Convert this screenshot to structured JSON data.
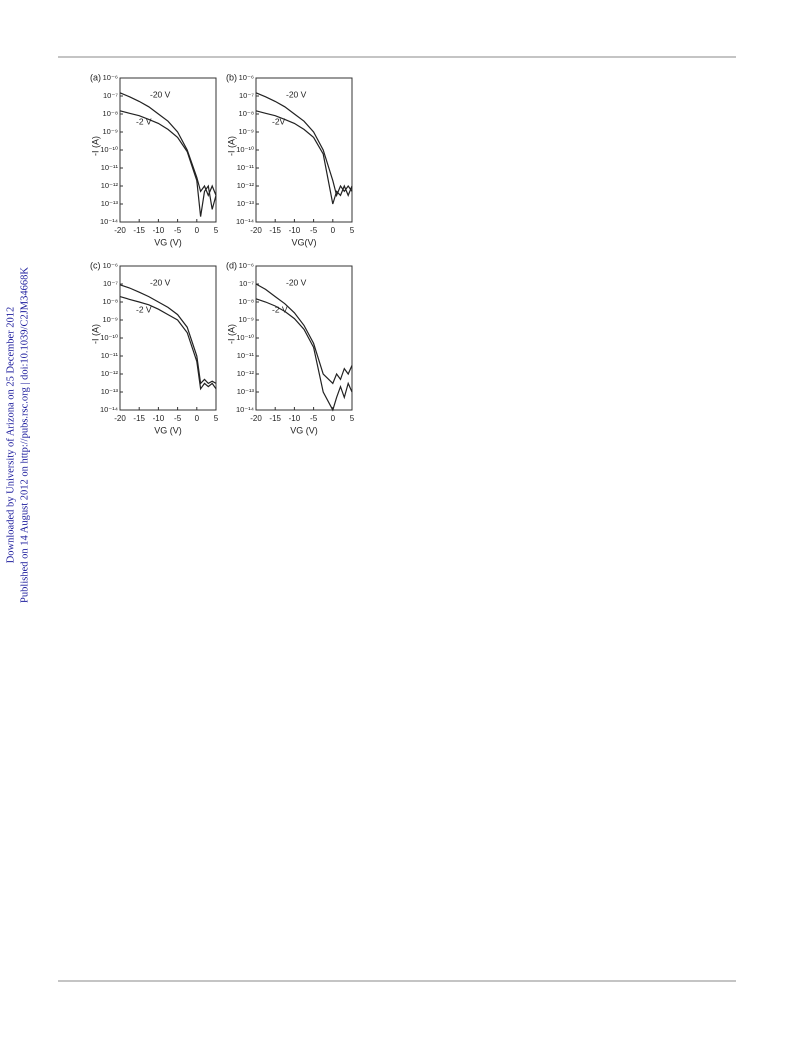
{
  "sidebar": {
    "line1": "Downloaded by University of Arizona on 25 December 2012",
    "line2": "Published on 14 August 2012 on http://pubs.rsc.org | doi:10.1039/C2JM34668K"
  },
  "chart_data": [
    {
      "type": "line",
      "panel": "(a)",
      "x_label": "VG (V)",
      "y_label": "-I (A)",
      "log_y": true,
      "x": [
        -20,
        -17.5,
        -15,
        -12.5,
        -10,
        -7.5,
        -5,
        -2.5,
        0,
        1,
        2,
        3,
        4,
        5
      ],
      "series": [
        {
          "color": "#222222",
          "values": [
            1.5e-07,
            9e-08,
            5e-08,
            2.5e-08,
            1e-08,
            4e-09,
            1e-09,
            1e-10,
            3e-12,
            5e-13,
            1e-12,
            3e-13,
            1e-12,
            3e-13
          ]
        },
        {
          "color": "#222222",
          "values": [
            1.5e-08,
            1.1e-08,
            8e-09,
            5e-09,
            3e-09,
            1.4e-09,
            5e-10,
            8e-11,
            2e-12,
            2e-14,
            5e-13,
            1e-12,
            5e-14,
            3e-13
          ]
        }
      ],
      "annotations": [
        "-20 V",
        "-2 V"
      ],
      "xlim": [
        -20,
        5
      ],
      "ylim": [
        1e-14,
        1e-06
      ],
      "xticks": [
        -20,
        -15,
        -10,
        -5,
        0,
        5
      ],
      "yticks": [
        {
          "value": 1e-14,
          "label": "10⁻¹⁴"
        },
        {
          "value": 1e-13,
          "label": "10⁻¹³"
        },
        {
          "value": 1e-12,
          "label": "10⁻¹²"
        },
        {
          "value": 1e-11,
          "label": "10⁻¹¹"
        },
        {
          "value": 1e-10,
          "label": "10⁻¹⁰"
        },
        {
          "value": 1e-09,
          "label": "10⁻⁹"
        },
        {
          "value": 1e-08,
          "label": "10⁻⁸"
        },
        {
          "value": 1e-07,
          "label": "10⁻⁷"
        },
        {
          "value": 1e-06,
          "label": "10⁻⁶"
        }
      ]
    },
    {
      "type": "line",
      "panel": "(b)",
      "x_label": "VG(V)",
      "y_label": "-I (A)",
      "log_y": true,
      "x": [
        -20,
        -17.5,
        -15,
        -12.5,
        -10,
        -7.5,
        -5,
        -2.5,
        0,
        1,
        2,
        3,
        4,
        5
      ],
      "series": [
        {
          "color": "#222222",
          "values": [
            1.5e-07,
            9e-08,
            5e-08,
            2.5e-08,
            1e-08,
            4e-09,
            1e-09,
            1e-10,
            2e-12,
            3e-13,
            1e-12,
            5e-13,
            1e-12,
            5e-13
          ]
        },
        {
          "color": "#222222",
          "values": [
            1.5e-08,
            1.1e-08,
            8e-09,
            5e-09,
            3e-09,
            1.4e-09,
            5e-10,
            6e-11,
            1e-13,
            5e-13,
            3e-13,
            1e-12,
            3e-13,
            1e-12
          ]
        }
      ],
      "annotations": [
        "-20 V",
        "-2V"
      ],
      "xlim": [
        -20,
        5
      ],
      "ylim": [
        1e-14,
        1e-06
      ],
      "xticks": [
        -20,
        -15,
        -10,
        -5,
        0,
        5
      ],
      "yticks": [
        {
          "value": 1e-14,
          "label": "10⁻¹⁴"
        },
        {
          "value": 1e-13,
          "label": "10⁻¹³"
        },
        {
          "value": 1e-12,
          "label": "10⁻¹²"
        },
        {
          "value": 1e-11,
          "label": "10⁻¹¹"
        },
        {
          "value": 1e-10,
          "label": "10⁻¹⁰"
        },
        {
          "value": 1e-09,
          "label": "10⁻⁹"
        },
        {
          "value": 1e-08,
          "label": "10⁻⁸"
        },
        {
          "value": 1e-07,
          "label": "10⁻⁷"
        },
        {
          "value": 1e-06,
          "label": "10⁻⁶"
        }
      ]
    },
    {
      "type": "line",
      "panel": "(c)",
      "x_label": "VG (V)",
      "y_label": "-I (A)",
      "log_y": true,
      "x": [
        -20,
        -17.5,
        -15,
        -12.5,
        -10,
        -7.5,
        -5,
        -2.5,
        0,
        1,
        2,
        3,
        4,
        5
      ],
      "series": [
        {
          "color": "#222222",
          "values": [
            9e-08,
            6e-08,
            3.5e-08,
            2e-08,
            1e-08,
            5e-09,
            2e-09,
            4e-10,
            1e-11,
            3e-13,
            5e-13,
            3e-13,
            4e-13,
            3e-13
          ]
        },
        {
          "color": "#222222",
          "values": [
            2e-08,
            1.4e-08,
            1e-08,
            7e-09,
            4e-09,
            2e-09,
            1e-09,
            2e-10,
            5e-12,
            1.5e-13,
            3e-13,
            2e-13,
            3e-13,
            1.5e-13
          ]
        }
      ],
      "annotations": [
        "-20 V",
        "-2 V"
      ],
      "xlim": [
        -20,
        5
      ],
      "ylim": [
        1e-14,
        1e-06
      ],
      "xticks": [
        -20,
        -15,
        -10,
        -5,
        0,
        5
      ],
      "yticks": [
        {
          "value": 1e-14,
          "label": "10⁻¹⁴"
        },
        {
          "value": 1e-13,
          "label": "10⁻¹³"
        },
        {
          "value": 1e-12,
          "label": "10⁻¹²"
        },
        {
          "value": 1e-11,
          "label": "10⁻¹¹"
        },
        {
          "value": 1e-10,
          "label": "10⁻¹⁰"
        },
        {
          "value": 1e-09,
          "label": "10⁻⁹"
        },
        {
          "value": 1e-08,
          "label": "10⁻⁸"
        },
        {
          "value": 1e-07,
          "label": "10⁻⁷"
        },
        {
          "value": 1e-06,
          "label": "10⁻⁶"
        }
      ]
    },
    {
      "type": "line",
      "panel": "(d)",
      "x_label": "VG (V)",
      "y_label": "-I (A)",
      "log_y": true,
      "x": [
        -20,
        -17.5,
        -15,
        -12.5,
        -10,
        -7.5,
        -5,
        -2.5,
        0,
        1,
        2,
        3,
        4,
        5
      ],
      "series": [
        {
          "color": "#222222",
          "values": [
            1e-07,
            5e-08,
            2e-08,
            8e-09,
            2.5e-09,
            5e-10,
            5e-11,
            1e-12,
            3e-13,
            1e-12,
            5e-13,
            2e-12,
            1e-12,
            3e-12
          ]
        },
        {
          "color": "#222222",
          "values": [
            1.5e-08,
            1e-08,
            6e-09,
            3e-09,
            1.2e-09,
            3e-10,
            3e-11,
            1e-13,
            1e-14,
            5e-14,
            2e-13,
            5e-14,
            3e-13,
            1e-13
          ]
        }
      ],
      "annotations": [
        "-20 V",
        "-2 V"
      ],
      "xlim": [
        -20,
        5
      ],
      "ylim": [
        1e-14,
        1e-06
      ],
      "xticks": [
        -20,
        -15,
        -10,
        -5,
        0,
        5
      ],
      "yticks": [
        {
          "value": 1e-14,
          "label": "10⁻¹⁴"
        },
        {
          "value": 1e-13,
          "label": "10⁻¹³"
        },
        {
          "value": 1e-12,
          "label": "10⁻¹²"
        },
        {
          "value": 1e-11,
          "label": "10⁻¹¹"
        },
        {
          "value": 1e-10,
          "label": "10⁻¹⁰"
        },
        {
          "value": 1e-09,
          "label": "10⁻⁹"
        },
        {
          "value": 1e-08,
          "label": "10⁻⁸"
        },
        {
          "value": 1e-07,
          "label": "10⁻⁷"
        },
        {
          "value": 1e-06,
          "label": "10⁻⁶"
        }
      ]
    }
  ]
}
